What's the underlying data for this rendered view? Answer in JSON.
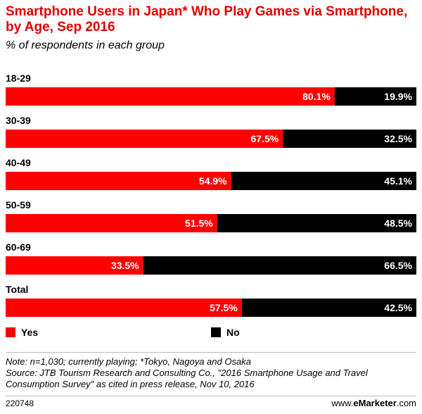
{
  "header": {
    "title": "Smartphone Users in Japan* Who Play Games via Smartphone, by Age, Sep 2016",
    "subtitle": "% of respondents in each group"
  },
  "legend": {
    "yes_label": "Yes",
    "no_label": "No"
  },
  "colors": {
    "title": "#e30000",
    "yes": "#ff0000",
    "no": "#000000"
  },
  "chart_data": {
    "type": "bar",
    "orientation": "horizontal",
    "stacked": true,
    "categories": [
      "18-29",
      "30-39",
      "40-49",
      "50-59",
      "60-69",
      "Total"
    ],
    "series": [
      {
        "name": "Yes",
        "values": [
          80.1,
          67.5,
          54.9,
          51.5,
          33.5,
          57.5
        ]
      },
      {
        "name": "No",
        "values": [
          19.9,
          32.5,
          45.1,
          48.5,
          66.5,
          42.5
        ]
      }
    ],
    "value_suffix": "%",
    "xlim": [
      0,
      100
    ],
    "grid": false,
    "legend_position": "bottom-left"
  },
  "notes": {
    "note": "Note: n=1,030; currently playing; *Tokyo, Nagoya and Osaka",
    "source": "Source: JTB Tourism Research and Consulting Co., \"2016 Smartphone Usage and Travel Consumption Survey\" as cited in press release, Nov 10, 2016"
  },
  "footer": {
    "chart_id": "220748",
    "brand_prefix": "www.",
    "brand_name": "eMarketer",
    "brand_suffix": ".com"
  }
}
